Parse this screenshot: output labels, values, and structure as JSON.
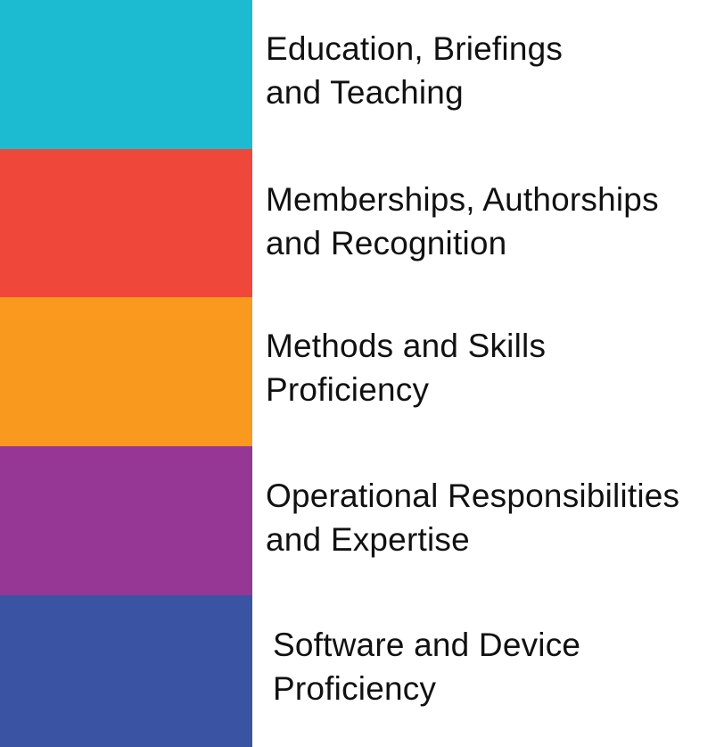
{
  "legend": {
    "items": [
      {
        "color": "#1CBBD2",
        "line1": "Education, Briefings",
        "line2": "and Teaching"
      },
      {
        "color": "#F0473B",
        "line1": "Memberships, Authorships",
        "line2": "and Recognition"
      },
      {
        "color": "#F9991E",
        "line1": "Methods and Skills",
        "line2": "Proficiency"
      },
      {
        "color": "#963695",
        "line1": "Operational Responsibilities",
        "line2": "and Expertise"
      },
      {
        "color": "#3A54A3",
        "line1": "Software and Device",
        "line2": "Proficiency"
      }
    ]
  }
}
